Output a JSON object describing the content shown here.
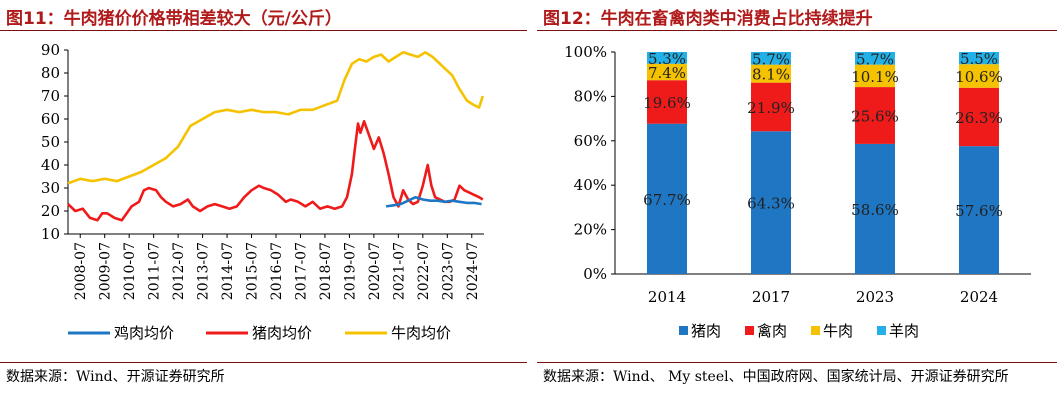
{
  "charts": {
    "left": {
      "title": "图11：牛肉猪价价格带相差较大（元/公斤）",
      "source": "数据来源：Wind、开源证券研究所"
    },
    "right": {
      "title": "图12：牛肉在畜禽肉类中消费占比持续提升",
      "source": "数据来源：Wind、 My steel、中国政府网、国家统计局、开源证券研究所"
    }
  },
  "colors": {
    "chicken": "#1f77c4",
    "pork": "#ef1b1b",
    "beef": "#f5c200",
    "lamb": "#22b0e6",
    "poultry": "#ef1b1b",
    "title": "#b01a1a"
  },
  "chart_data": [
    {
      "type": "line",
      "title": "牛肉猪价价格带相差较大（元/公斤）",
      "ylim": [
        10,
        90
      ],
      "yticks": [
        "10",
        "20",
        "30",
        "40",
        "50",
        "60",
        "70",
        "80",
        "90"
      ],
      "xticks": [
        "2008-07",
        "2009-07",
        "2010-07",
        "2011-07",
        "2012-07",
        "2013-07",
        "2014-07",
        "2015-07",
        "2016-07",
        "2017-07",
        "2018-07",
        "2019-07",
        "2020-07",
        "2021-07",
        "2022-07",
        "2023-07",
        "2024-07"
      ],
      "x_start": 2008.0,
      "x_end": 2025.0,
      "series": [
        {
          "name": "鸡肉均价",
          "color": "#1f77c4",
          "x": [
            2021.0,
            2021.3,
            2021.6,
            2021.9,
            2022.2,
            2022.5,
            2022.8,
            2023.1,
            2023.4,
            2023.7,
            2024.0,
            2024.3,
            2024.6,
            2024.9
          ],
          "values": [
            22,
            22.5,
            23,
            24.5,
            26,
            25,
            24.5,
            24.5,
            24,
            24.5,
            24,
            23.5,
            23.5,
            23
          ]
        },
        {
          "name": "猪肉均价",
          "color": "#ef1b1b",
          "x": [
            2008.0,
            2008.3,
            2008.6,
            2008.9,
            2009.2,
            2009.4,
            2009.6,
            2009.9,
            2010.2,
            2010.4,
            2010.6,
            2010.9,
            2011.1,
            2011.3,
            2011.6,
            2011.8,
            2012.0,
            2012.3,
            2012.6,
            2012.9,
            2013.1,
            2013.4,
            2013.7,
            2014.0,
            2014.3,
            2014.6,
            2014.9,
            2015.2,
            2015.5,
            2015.8,
            2016.0,
            2016.3,
            2016.6,
            2016.9,
            2017.1,
            2017.4,
            2017.7,
            2018.0,
            2018.3,
            2018.6,
            2018.9,
            2019.2,
            2019.4,
            2019.6,
            2019.7,
            2019.85,
            2019.95,
            2020.1,
            2020.3,
            2020.5,
            2020.7,
            2020.9,
            2021.1,
            2021.3,
            2021.5,
            2021.7,
            2021.9,
            2022.1,
            2022.3,
            2022.5,
            2022.7,
            2022.85,
            2023.0,
            2023.2,
            2023.4,
            2023.6,
            2023.8,
            2024.0,
            2024.2,
            2024.4,
            2024.6,
            2024.8,
            2024.95
          ],
          "values": [
            23,
            20,
            21,
            17,
            16,
            19,
            19,
            17,
            16,
            19,
            22,
            24,
            29,
            30,
            29,
            26,
            24,
            22,
            23,
            25,
            22,
            20,
            22,
            23,
            22,
            21,
            22,
            26,
            29,
            31,
            30,
            29,
            27,
            24,
            25,
            24,
            22,
            24,
            21,
            22,
            21,
            22,
            26,
            36,
            45,
            58,
            54,
            59,
            53,
            47,
            52,
            45,
            36,
            26,
            22,
            29,
            25,
            23,
            24,
            31,
            40,
            31,
            26,
            25,
            24,
            24,
            25,
            31,
            29,
            28,
            27,
            26,
            25
          ]
        },
        {
          "name": "牛肉均价",
          "color": "#f5c200",
          "x": [
            2008.0,
            2008.5,
            2009.0,
            2009.5,
            2010.0,
            2010.5,
            2011.0,
            2011.5,
            2012.0,
            2012.5,
            2013.0,
            2013.5,
            2014.0,
            2014.5,
            2015.0,
            2015.5,
            2016.0,
            2016.5,
            2017.0,
            2017.5,
            2018.0,
            2018.5,
            2019.0,
            2019.3,
            2019.6,
            2019.9,
            2020.2,
            2020.5,
            2020.8,
            2021.1,
            2021.4,
            2021.7,
            2022.0,
            2022.3,
            2022.6,
            2022.9,
            2023.1,
            2023.4,
            2023.7,
            2024.0,
            2024.3,
            2024.6,
            2024.8,
            2024.95
          ],
          "values": [
            32,
            34,
            33,
            34,
            33,
            35,
            37,
            40,
            43,
            48,
            57,
            60,
            63,
            64,
            63,
            64,
            63,
            63,
            62,
            64,
            64,
            66,
            68,
            77,
            84,
            86,
            85,
            87,
            88,
            85,
            87,
            89,
            88,
            87,
            89,
            87,
            85,
            82,
            79,
            73,
            68,
            66,
            65,
            70
          ]
        }
      ]
    },
    {
      "type": "bar",
      "stacked": true,
      "title": "牛肉在畜禽肉类中消费占比持续提升",
      "ylim": [
        0,
        100
      ],
      "yticks": [
        "0%",
        "20%",
        "40%",
        "60%",
        "80%",
        "100%"
      ],
      "categories": [
        "2014",
        "2017",
        "2023",
        "2024"
      ],
      "series": [
        {
          "name": "猪肉",
          "color": "#1f77c4",
          "values": [
            67.7,
            64.3,
            58.6,
            57.6
          ],
          "labels": [
            "67.7%",
            "64.3%",
            "58.6%",
            "57.6%"
          ]
        },
        {
          "name": "禽肉",
          "color": "#ef1b1b",
          "values": [
            19.6,
            21.9,
            25.6,
            26.3
          ],
          "labels": [
            "19.6%",
            "21.9%",
            "25.6%",
            "26.3%"
          ]
        },
        {
          "name": "牛肉",
          "color": "#f5c200",
          "values": [
            7.4,
            8.1,
            10.1,
            10.6
          ],
          "labels": [
            "7.4%",
            "8.1%",
            "10.1%",
            "10.6%"
          ]
        },
        {
          "name": "羊肉",
          "color": "#22b0e6",
          "values": [
            5.3,
            5.7,
            5.7,
            5.5
          ],
          "labels": [
            "5.3%",
            "5.7%",
            "5.7%",
            "5.5%"
          ]
        }
      ]
    }
  ]
}
